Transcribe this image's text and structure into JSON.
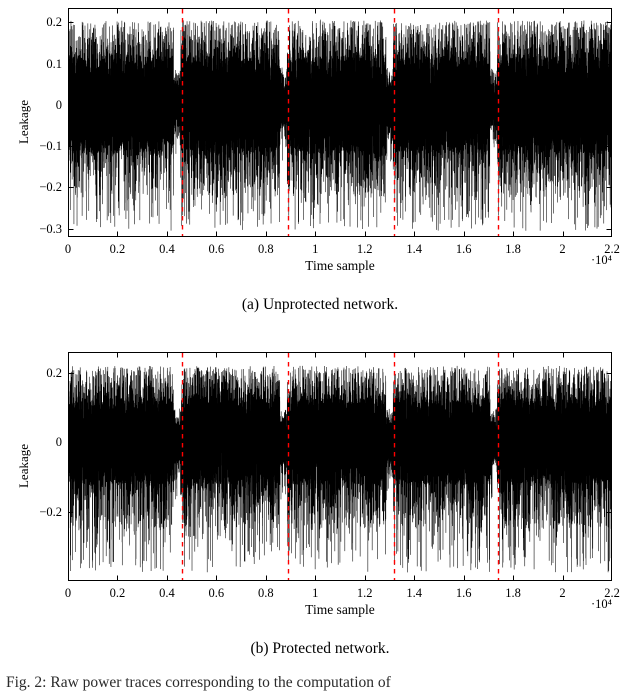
{
  "page": {
    "background": "#ffffff"
  },
  "figure_caption_fragment": "Fig. 2: Raw power traces corresponding to the computation of",
  "chart_data": [
    {
      "type": "line",
      "title": "",
      "caption": "(a) Unprotected network.",
      "xlabel": "Time sample",
      "ylabel": "Leakage",
      "x_scale_label": "·10⁴",
      "legend": "none",
      "grid": false,
      "xlim": [
        0,
        22000
      ],
      "ylim": [
        -0.32,
        0.235
      ],
      "xticks": {
        "values": [
          0,
          2000,
          4000,
          6000,
          8000,
          10000,
          12000,
          14000,
          16000,
          18000,
          20000,
          22000
        ],
        "labels": [
          "0",
          "0.2",
          "0.4",
          "0.6",
          "0.8",
          "1",
          "1.2",
          "1.4",
          "1.6",
          "1.8",
          "2",
          "2.2"
        ]
      },
      "yticks": {
        "values": [
          0.2,
          0.1,
          0,
          -0.1,
          -0.2,
          -0.3
        ],
        "labels": [
          "0.2",
          "0.1",
          "0",
          "−0.1",
          "−0.2",
          "−0.3"
        ]
      },
      "signal": {
        "description": "dense noise-like power trace, solid core band with hair spikes",
        "color": "#000000",
        "n_samples": 22000,
        "seed": 1337,
        "core": [
          -0.115,
          0.115
        ],
        "upper_hair": [
          0.115,
          0.205
        ],
        "lower_hair": [
          -0.225,
          -0.115
        ],
        "deep_spikes": [
          -0.305,
          -0.225
        ],
        "mix": [
          0.82,
          0.91,
          0.988
        ]
      },
      "vlines": {
        "x": [
          4600,
          8900,
          13190,
          17400
        ],
        "color": "#ff0000",
        "style": "dashed",
        "dash": [
          4.5,
          4.5
        ]
      }
    },
    {
      "type": "line",
      "title": "",
      "caption": "(b) Protected network.",
      "xlabel": "Time sample",
      "ylabel": "Leakage",
      "x_scale_label": "·10⁴",
      "legend": "none",
      "grid": false,
      "xlim": [
        0,
        22000
      ],
      "ylim": [
        -0.4,
        0.26
      ],
      "xticks": {
        "values": [
          0,
          2000,
          4000,
          6000,
          8000,
          10000,
          12000,
          14000,
          16000,
          18000,
          20000,
          22000
        ],
        "labels": [
          "0",
          "0.2",
          "0.4",
          "0.6",
          "0.8",
          "1",
          "1.2",
          "1.4",
          "1.6",
          "1.8",
          "2",
          "2.2"
        ]
      },
      "yticks": {
        "values": [
          0.2,
          0,
          -0.2
        ],
        "labels": [
          "0.2",
          "0",
          "−0.2"
        ]
      },
      "signal": {
        "description": "dense noise-like power trace, solid core band with longer downward spikes",
        "color": "#000000",
        "n_samples": 22000,
        "seed": 2024,
        "core": [
          -0.12,
          0.125
        ],
        "upper_hair": [
          0.125,
          0.22
        ],
        "lower_hair": [
          -0.25,
          -0.12
        ],
        "deep_spikes": [
          -0.375,
          -0.25
        ],
        "mix": [
          0.81,
          0.905,
          0.985
        ]
      },
      "vlines": {
        "x": [
          4600,
          8900,
          13190,
          17400
        ],
        "color": "#ff0000",
        "style": "dashed",
        "dash": [
          4.5,
          4.5
        ]
      }
    }
  ]
}
